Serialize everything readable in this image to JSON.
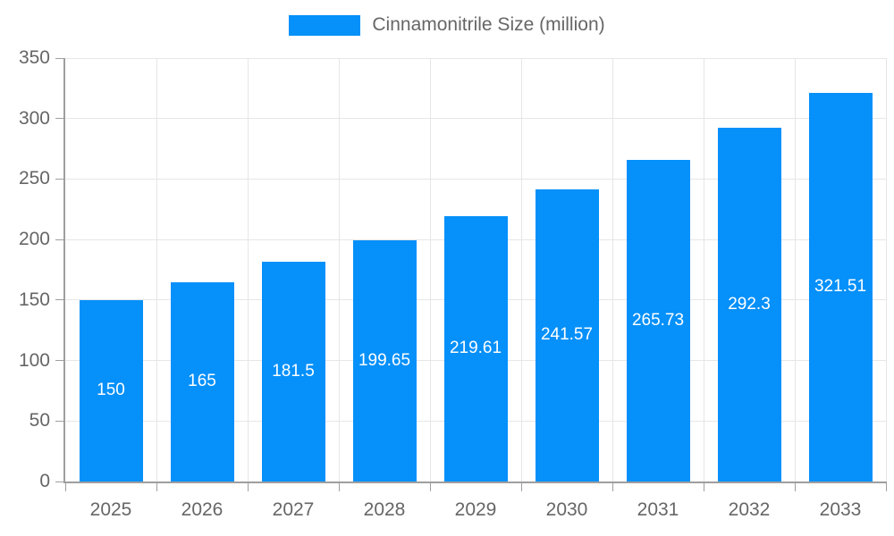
{
  "chart_data": {
    "type": "bar",
    "title": "Cinnamonitrile Size (million)",
    "categories": [
      "2025",
      "2026",
      "2027",
      "2028",
      "2029",
      "2030",
      "2031",
      "2032",
      "2033"
    ],
    "values": [
      150,
      165,
      181.5,
      199.65,
      219.61,
      241.57,
      265.73,
      292.3,
      321.51
    ],
    "xlabel": "",
    "ylabel": "",
    "ylim": [
      0,
      350
    ],
    "yticks": [
      0,
      50,
      100,
      150,
      200,
      250,
      300,
      350
    ],
    "grid": true,
    "legend": {
      "position": "top",
      "entries": [
        {
          "label": "Cinnamonitrile Size (million)",
          "color": "#0590fa"
        }
      ]
    },
    "colors": {
      "bar": "#0590fa",
      "bar_value_label": "#ffffff",
      "axis_text": "#666666",
      "grid_line": "#e6e6e6",
      "axis_line": "#9e9e9e"
    }
  }
}
